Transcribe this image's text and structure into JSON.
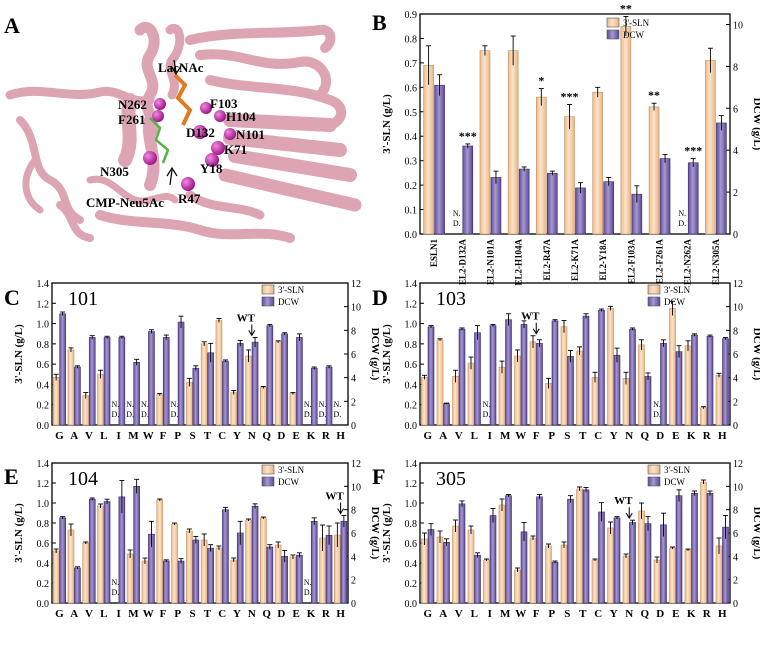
{
  "colors": {
    "sln_fill": "#fbd5b0",
    "dcw_fill": "#7f6fb3",
    "protein": "#e2a6b6",
    "sphere": "#b8199b",
    "ligand": "#e07b22"
  },
  "panel_a": {
    "letter": "A",
    "ligand_top": "LacNAc",
    "ligand_bottom": "CMP-Neu5Ac",
    "residues": [
      "N262",
      "F261",
      "F103",
      "H104",
      "D132",
      "N101",
      "K71",
      "Y18",
      "N305",
      "R47"
    ]
  },
  "panel_b": {
    "letter": "B"
  },
  "panel_c": {
    "letter": "C",
    "site": "101"
  },
  "panel_d": {
    "letter": "D",
    "site": "103"
  },
  "panel_e": {
    "letter": "E",
    "site": "104"
  },
  "panel_f": {
    "letter": "F",
    "site": "305"
  },
  "chart_data": [
    {
      "type": "bar",
      "panel": "B",
      "categories": [
        "ESLN1",
        "EL2-D132A",
        "EL2-N101A",
        "EL2-H104A",
        "EL2-R47A",
        "EL2-K71A",
        "EL2-Y18A",
        "EL2-F103A",
        "EL2-F261A",
        "EL2-N262A",
        "EL2-N305A"
      ],
      "series": [
        {
          "name": "3'-SLN",
          "axis": "left",
          "values": [
            0.69,
            0.0,
            0.75,
            0.75,
            0.56,
            0.48,
            0.58,
            0.85,
            0.52,
            0.0,
            0.71
          ],
          "errors": [
            0.08,
            0,
            0.02,
            0.06,
            0.035,
            0.05,
            0.02,
            0.04,
            0.015,
            0,
            0.05
          ]
        },
        {
          "name": "DCW",
          "axis": "right",
          "values": [
            7.1,
            4.2,
            2.7,
            3.1,
            2.9,
            2.2,
            2.5,
            1.9,
            3.6,
            3.4,
            5.3
          ],
          "errors": [
            0.5,
            0.1,
            0.3,
            0.1,
            0.1,
            0.25,
            0.2,
            0.4,
            0.2,
            0.2,
            0.35
          ]
        }
      ],
      "nd_labels": [
        "N.",
        "D."
      ],
      "significance": [
        "",
        "***",
        "",
        "",
        "*",
        "***",
        "",
        "**",
        "**",
        "***",
        ""
      ],
      "ylabel": "3'-SLN (g/L)",
      "y2label": "DCW (g/L)",
      "ylim": [
        0,
        0.9
      ],
      "yticks": [
        "0.0",
        "0.1",
        "0.2",
        "0.3",
        "0.4",
        "0.5",
        "0.6",
        "0.7",
        "0.8",
        "0.9"
      ],
      "y2lim": [
        0,
        10.5
      ],
      "y2ticks": [
        "0",
        "2",
        "4",
        "6",
        "8",
        "10"
      ],
      "legend": [
        "3'-SLN",
        "DCW"
      ]
    },
    {
      "type": "bar",
      "panel": "C",
      "categories": [
        "G",
        "A",
        "V",
        "L",
        "I",
        "M",
        "W",
        "F",
        "P",
        "S",
        "T",
        "C",
        "Y",
        "N",
        "Q",
        "D",
        "E",
        "K",
        "R",
        "H"
      ],
      "series": [
        {
          "name": "3'-SLN",
          "axis": "left",
          "values": [
            0.47,
            0.74,
            0.29,
            0.5,
            0,
            0,
            0,
            0.3,
            0,
            0.42,
            0.8,
            1.03,
            0.32,
            0.68,
            0.37,
            0.82,
            0.31,
            0,
            0,
            0
          ],
          "errors": [
            0.03,
            0.02,
            0.03,
            0.04,
            0,
            0,
            0,
            0.01,
            0,
            0.04,
            0.02,
            0.02,
            0.02,
            0.06,
            0.01,
            0.01,
            0.01,
            0,
            0,
            0
          ]
        },
        {
          "name": "DCW",
          "axis": "right",
          "values": [
            9.4,
            4.9,
            7.4,
            7.4,
            7.4,
            5.3,
            7.9,
            7.4,
            8.7,
            4.8,
            6.1,
            5.4,
            6.9,
            7.0,
            8.4,
            7.7,
            7.4,
            4.8,
            4.9,
            0
          ],
          "errors": [
            0.15,
            0.1,
            0.15,
            0.1,
            0.1,
            0.25,
            0.15,
            0.2,
            0.5,
            0.2,
            0.8,
            0.1,
            0.25,
            0.4,
            0.1,
            0.1,
            0.3,
            0.1,
            0.1,
            0
          ]
        }
      ],
      "nd_labels": [
        "N.",
        "D."
      ],
      "annotation": "WT",
      "ylabel": "3'-SLN (g/L)",
      "y2label": "DCW (g/L)",
      "ylim": [
        0,
        1.4
      ],
      "yticks": [
        "0.0",
        "0.2",
        "0.4",
        "0.6",
        "0.8",
        "1.0",
        "1.2",
        "1.4"
      ],
      "y2lim": [
        0,
        12
      ],
      "y2ticks": [
        "0",
        "2",
        "4",
        "6",
        "8",
        "10",
        "12"
      ],
      "legend": [
        "3'-SLN",
        "DCW"
      ]
    },
    {
      "type": "bar",
      "panel": "D",
      "categories": [
        "G",
        "A",
        "V",
        "L",
        "I",
        "M",
        "W",
        "F",
        "P",
        "S",
        "T",
        "C",
        "Y",
        "N",
        "Q",
        "D",
        "E",
        "K",
        "R",
        "H"
      ],
      "series": [
        {
          "name": "3'-SLN",
          "axis": "left",
          "values": [
            0.47,
            0.84,
            0.48,
            0.61,
            0,
            0.57,
            0.68,
            0.82,
            0.41,
            0.97,
            0.73,
            0.47,
            1.15,
            0.46,
            0.79,
            0,
            1.15,
            0.78,
            0.17,
            0.49
          ],
          "errors": [
            0.02,
            0.01,
            0.06,
            0.06,
            0,
            0.06,
            0.06,
            0.06,
            0.05,
            0.06,
            0.04,
            0.05,
            0.02,
            0.06,
            0.05,
            0,
            0.07,
            0.05,
            0.01,
            0.02
          ]
        },
        {
          "name": "DCW",
          "axis": "right",
          "values": [
            8.3,
            1.8,
            8.1,
            7.8,
            8.4,
            8.9,
            8.5,
            6.9,
            8.8,
            5.8,
            9.2,
            9.7,
            5.9,
            8.1,
            4.1,
            6.9,
            6.2,
            7.6,
            7.5,
            7.3
          ],
          "errors": [
            0.1,
            0.05,
            0.1,
            0.6,
            0.1,
            0.5,
            0.3,
            0.3,
            0.1,
            0.5,
            0.2,
            0.1,
            0.6,
            0.1,
            0.3,
            0.3,
            0.5,
            0.1,
            0.1,
            0.1
          ]
        }
      ],
      "nd_labels": [
        "N.",
        "D."
      ],
      "annotation": "WT",
      "ylabel": "3'-SLN (g/L)",
      "y2label": "DCW (g/L)",
      "ylim": [
        0,
        1.4
      ],
      "yticks": [
        "0.0",
        "0.2",
        "0.4",
        "0.6",
        "0.8",
        "1.0",
        "1.2",
        "1.4"
      ],
      "y2lim": [
        0,
        12
      ],
      "y2ticks": [
        "0",
        "2",
        "4",
        "6",
        "8",
        "10",
        "12"
      ],
      "legend": [
        "3'-SLN",
        "DCW"
      ]
    },
    {
      "type": "bar",
      "panel": "E",
      "categories": [
        "G",
        "A",
        "V",
        "L",
        "I",
        "M",
        "W",
        "F",
        "P",
        "S",
        "T",
        "C",
        "Y",
        "N",
        "Q",
        "D",
        "E",
        "K",
        "R",
        "H"
      ],
      "series": [
        {
          "name": "3'-SLN",
          "axis": "left",
          "values": [
            0.52,
            0.73,
            0.6,
            0.97,
            0,
            0.49,
            0.42,
            1.03,
            0.79,
            0.72,
            0.63,
            0.55,
            0.43,
            0.83,
            0.85,
            0.58,
            0.46,
            0,
            0.65,
            0.68
          ],
          "errors": [
            0.02,
            0.06,
            0.01,
            0.02,
            0,
            0.04,
            0.03,
            0.01,
            0.01,
            0.02,
            0.06,
            0.02,
            0.02,
            0.01,
            0.01,
            0.03,
            0.02,
            0,
            0.13,
            0.12
          ]
        },
        {
          "name": "DCW",
          "axis": "right",
          "values": [
            7.3,
            3.0,
            8.9,
            8.7,
            9.1,
            10.0,
            5.9,
            3.6,
            3.6,
            5.4,
            4.7,
            8.0,
            6.0,
            8.3,
            4.8,
            4.0,
            4.1,
            7.0,
            5.8,
            7.0
          ],
          "errors": [
            0.1,
            0.1,
            0.1,
            0.2,
            1.4,
            0.6,
            1.1,
            0.1,
            0.2,
            0.3,
            0.3,
            0.2,
            1.0,
            0.2,
            0.2,
            0.5,
            0.2,
            0.3,
            0.8,
            0.5
          ]
        }
      ],
      "nd_labels": [
        "N.",
        "D."
      ],
      "annotation": "WT",
      "ylabel": "3'-SLN (g/L)",
      "y2label": "DCW (g/L)",
      "ylim": [
        0,
        1.4
      ],
      "yticks": [
        "0.0",
        "0.2",
        "0.4",
        "0.6",
        "0.8",
        "1.0",
        "1.2",
        "1.4"
      ],
      "y2lim": [
        0,
        12
      ],
      "y2ticks": [
        "0",
        "2",
        "4",
        "6",
        "8",
        "10",
        "12"
      ],
      "legend": [
        "3'-SLN",
        "DCW"
      ]
    },
    {
      "type": "bar",
      "panel": "F",
      "categories": [
        "G",
        "A",
        "V",
        "L",
        "I",
        "M",
        "W",
        "F",
        "P",
        "S",
        "T",
        "C",
        "Y",
        "N",
        "Q",
        "D",
        "E",
        "K",
        "R",
        "H"
      ],
      "series": [
        {
          "name": "3'-SLN",
          "axis": "left",
          "values": [
            0.64,
            0.66,
            0.77,
            0.73,
            0.43,
            0.98,
            0.33,
            0.65,
            0.57,
            0.58,
            1.14,
            0.43,
            0.75,
            0.47,
            0.92,
            0.43,
            0.55,
            0.53,
            1.21,
            0.57
          ],
          "errors": [
            0.06,
            0.06,
            0.06,
            0.04,
            0.01,
            0.06,
            0.02,
            0.02,
            0.02,
            0.03,
            0.02,
            0.01,
            0.06,
            0.02,
            0.08,
            0.03,
            0.01,
            0.01,
            0.02,
            0.08
          ]
        },
        {
          "name": "DCW",
          "axis": "right",
          "values": [
            6.3,
            5.2,
            8.5,
            4.1,
            7.5,
            9.2,
            6.1,
            9.1,
            3.5,
            8.9,
            9.7,
            7.8,
            7.3,
            6.9,
            6.8,
            6.7,
            9.2,
            9.4,
            9.4,
            6.5
          ],
          "errors": [
            0.5,
            0.3,
            0.25,
            0.2,
            0.6,
            0.1,
            0.8,
            0.2,
            0.1,
            0.3,
            0.2,
            0.8,
            0.1,
            0.2,
            0.6,
            1.0,
            0.5,
            0.2,
            0.2,
            1.0
          ]
        }
      ],
      "annotation": "WT",
      "ylabel": "3'-SLN (g/L)",
      "y2label": "DCW (g/L)",
      "ylim": [
        0,
        1.4
      ],
      "yticks": [
        "0.0",
        "0.2",
        "0.4",
        "0.6",
        "0.8",
        "1.0",
        "1.2",
        "1.4"
      ],
      "y2lim": [
        0,
        12
      ],
      "y2ticks": [
        "0",
        "2",
        "4",
        "6",
        "8",
        "10",
        "12"
      ],
      "legend": [
        "3'-SLN",
        "DCW"
      ]
    }
  ]
}
